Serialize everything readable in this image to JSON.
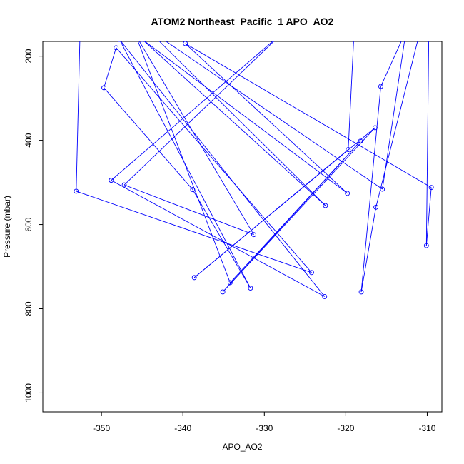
{
  "chart_data": {
    "type": "line",
    "title": "ATOM2 Northeast_Pacific_1 APO_AO2",
    "xlabel": "APO_AO2",
    "ylabel": "Pressure (mbar)",
    "xlim": [
      -357.2,
      -308.2
    ],
    "ylim": [
      1045,
      165
    ],
    "y_reversed": true,
    "x_ticks": [
      -350,
      -340,
      -330,
      -320,
      -310
    ],
    "y_ticks": [
      200,
      400,
      600,
      800,
      1000
    ],
    "series": [
      {
        "color": "#0000ff",
        "marker": "open-circle",
        "points": [
          [
            -352.6,
            120
          ],
          [
            -353.1,
            521
          ],
          [
            -324.2,
            714
          ],
          [
            -348.2,
            180
          ],
          [
            -349.7,
            275
          ],
          [
            -338.8,
            517
          ],
          [
            -331.7,
            751
          ],
          [
            -347.8,
            160
          ],
          [
            -322.6,
            771
          ],
          [
            -348.8,
            495
          ],
          [
            -327.5,
            140
          ],
          [
            -347.2,
            506
          ],
          [
            -331.3,
            624
          ],
          [
            -345.8,
            150
          ],
          [
            -334.2,
            738
          ],
          [
            -318.2,
            402
          ],
          [
            -335.1,
            760
          ],
          [
            -316.4,
            370
          ],
          [
            -338.6,
            726
          ],
          [
            -319.7,
            422
          ],
          [
            -319.0,
            150
          ],
          [
            -311.0,
            150
          ],
          [
            -316.3,
            559
          ],
          [
            -318.1,
            760
          ],
          [
            -315.7,
            272
          ],
          [
            -312.6,
            140
          ],
          [
            -315.5,
            516
          ],
          [
            -344.7,
            130
          ],
          [
            -322.5,
            555
          ],
          [
            -345.0,
            160
          ],
          [
            -319.8,
            526
          ],
          [
            -339.7,
            170
          ],
          [
            -309.5,
            512
          ],
          [
            -310.1,
            650
          ],
          [
            -309.8,
            140
          ]
        ]
      }
    ]
  }
}
